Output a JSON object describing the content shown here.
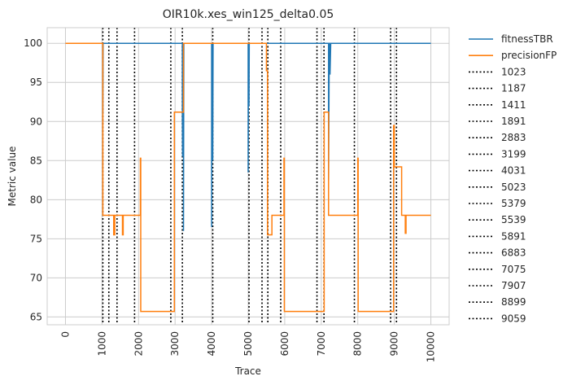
{
  "chart_data": {
    "type": "line",
    "title": "OIR10k.xes_win125_delta0.05",
    "xlabel": "Trace",
    "ylabel": "Metric value",
    "xlim": [
      -500,
      10500
    ],
    "ylim": [
      64,
      102
    ],
    "xticks": [
      0,
      1000,
      2000,
      3000,
      4000,
      5000,
      6000,
      7000,
      8000,
      9000,
      10000
    ],
    "yticks": [
      65,
      70,
      75,
      80,
      85,
      90,
      95,
      100
    ],
    "grid": true,
    "legend_position": "outside-right",
    "series": [
      {
        "name": "fitnessTBR",
        "color": "#1f77b4",
        "points": [
          [
            0,
            100
          ],
          [
            1023,
            100
          ],
          [
            1023,
            91
          ],
          [
            1030,
            100
          ],
          [
            3199,
            100
          ],
          [
            3199,
            91
          ],
          [
            3205,
            85.5
          ],
          [
            3210,
            100
          ],
          [
            3230,
            100
          ],
          [
            3230,
            76
          ],
          [
            3240,
            100
          ],
          [
            4000,
            100
          ],
          [
            4000,
            76.5
          ],
          [
            4010,
            100
          ],
          [
            4031,
            100
          ],
          [
            4031,
            85
          ],
          [
            4040,
            100
          ],
          [
            5000,
            100
          ],
          [
            5000,
            83.5
          ],
          [
            5010,
            100
          ],
          [
            5023,
            100
          ],
          [
            5023,
            92
          ],
          [
            5030,
            100
          ],
          [
            7200,
            100
          ],
          [
            7200,
            82.5
          ],
          [
            7220,
            100
          ],
          [
            7240,
            100
          ],
          [
            7240,
            96
          ],
          [
            7260,
            100
          ],
          [
            10000,
            100
          ]
        ]
      },
      {
        "name": "precisionFP",
        "color": "#ff7f0e",
        "points": [
          [
            0,
            100
          ],
          [
            1023,
            100
          ],
          [
            1023,
            78
          ],
          [
            1320,
            78
          ],
          [
            1320,
            75.5
          ],
          [
            1350,
            75.5
          ],
          [
            1350,
            78
          ],
          [
            1560,
            78
          ],
          [
            1560,
            75.5
          ],
          [
            1580,
            75.5
          ],
          [
            1580,
            78
          ],
          [
            2050,
            78
          ],
          [
            2050,
            85.3
          ],
          [
            2060,
            85.3
          ],
          [
            2060,
            65.7
          ],
          [
            2980,
            65.7
          ],
          [
            2980,
            91.2
          ],
          [
            3230,
            91.2
          ],
          [
            3230,
            100
          ],
          [
            5500,
            100
          ],
          [
            5500,
            96.5
          ],
          [
            5530,
            96.5
          ],
          [
            5530,
            75.5
          ],
          [
            5650,
            75.5
          ],
          [
            5650,
            78
          ],
          [
            5980,
            78
          ],
          [
            5980,
            85.3
          ],
          [
            5990,
            85.3
          ],
          [
            5990,
            65.7
          ],
          [
            7080,
            65.7
          ],
          [
            7080,
            91.2
          ],
          [
            7200,
            91.2
          ],
          [
            7200,
            78
          ],
          [
            8000,
            78
          ],
          [
            8000,
            85.3
          ],
          [
            8010,
            85.3
          ],
          [
            8010,
            65.7
          ],
          [
            8980,
            65.7
          ],
          [
            8980,
            89.5
          ],
          [
            9000,
            89.5
          ],
          [
            9000,
            84.2
          ],
          [
            9200,
            84.2
          ],
          [
            9200,
            78
          ],
          [
            9300,
            78
          ],
          [
            9300,
            75.7
          ],
          [
            9320,
            75.7
          ],
          [
            9320,
            78
          ],
          [
            10000,
            78
          ]
        ]
      }
    ],
    "vlines": [
      1023,
      1187,
      1411,
      1891,
      2883,
      3199,
      4031,
      5023,
      5379,
      5539,
      5891,
      6883,
      7075,
      7907,
      8899,
      9059
    ],
    "vline_labels": [
      "1023",
      "1187",
      "1411",
      "1891",
      "2883",
      "3199",
      "4031",
      "5023",
      "5379",
      "5539",
      "5891",
      "6883",
      "7075",
      "7907",
      "8899",
      "9059"
    ]
  }
}
